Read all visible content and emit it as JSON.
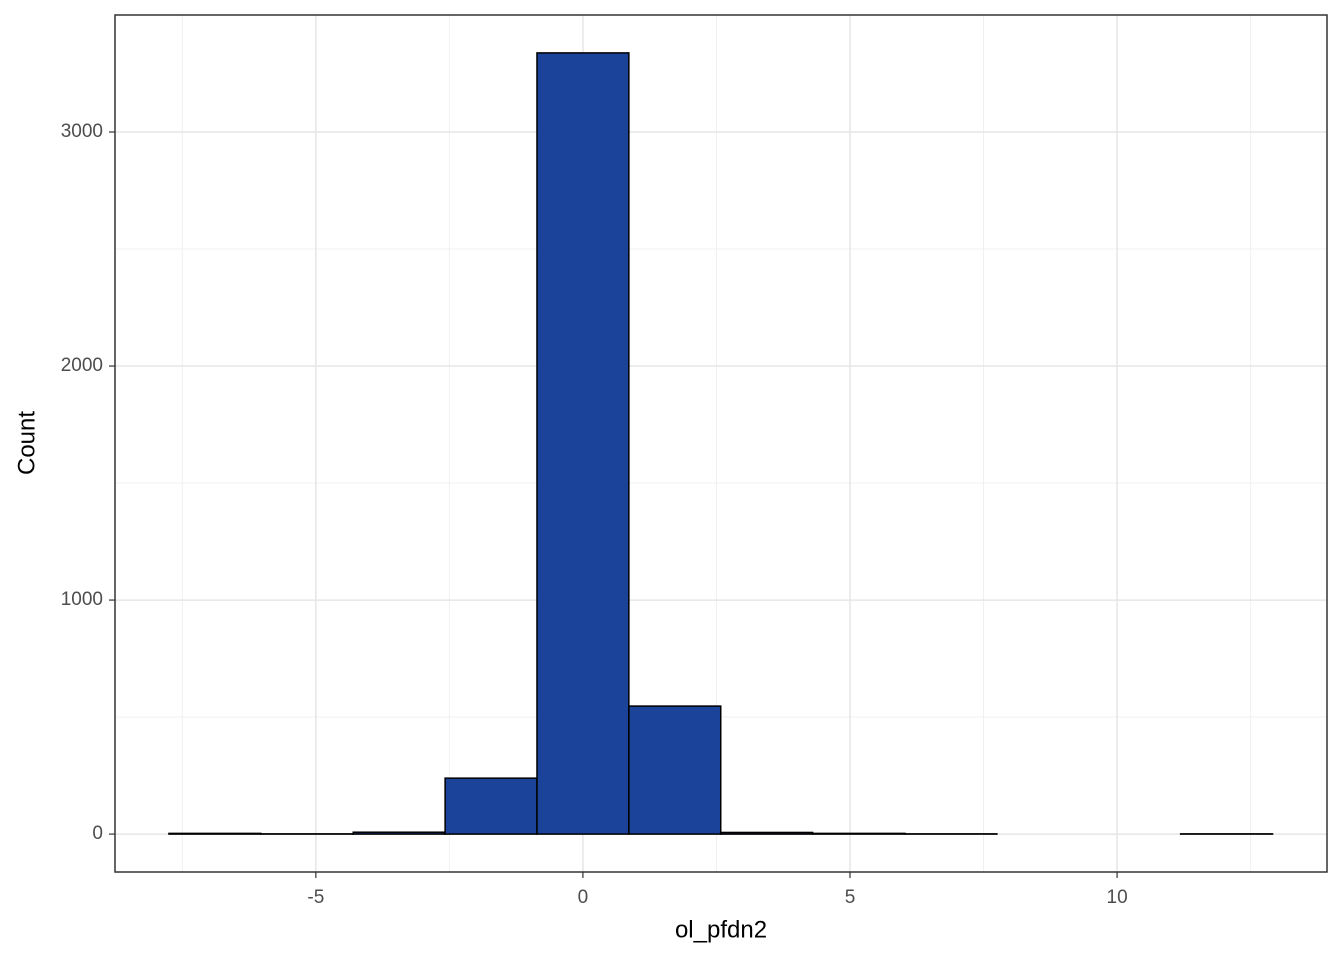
{
  "chart_data": {
    "type": "histogram",
    "x_label": "ol_pfdn2",
    "y_label": "Count",
    "bins": [
      -7.75,
      -6.03,
      -4.3,
      -2.58,
      -0.86,
      0.86,
      2.58,
      4.3,
      6.03,
      7.75,
      9.47,
      11.19,
      12.91
    ],
    "values": [
      3,
      1,
      8,
      239,
      3338,
      547,
      7,
      3,
      1,
      0,
      0,
      1
    ],
    "color": "#1a4399",
    "edge_color": "#000000",
    "xlim": [
      -8.76,
      13.93
    ],
    "xticks": [
      -5,
      0,
      5,
      10
    ],
    "x_minor_ticks": [
      -7.5,
      -2.5,
      2.5,
      7.5,
      12.5
    ],
    "ylim": [
      -162,
      3500
    ],
    "yticks": [
      0,
      1000,
      2000,
      3000
    ],
    "y_minor_ticks": [
      500,
      1500,
      2500,
      3500
    ],
    "grid": true
  }
}
